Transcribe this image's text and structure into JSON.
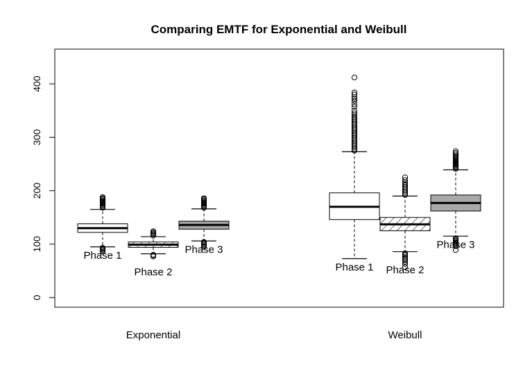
{
  "chart_data": {
    "type": "box",
    "title": "Comparing EMTF for Exponential and Weibull",
    "xlabel": "",
    "ylabel": "",
    "ylim": [
      -18,
      465
    ],
    "yticks": [
      0,
      100,
      200,
      300,
      400
    ],
    "groups": [
      "Exponential",
      "Weibull"
    ],
    "grid": false,
    "colors": {
      "white": "#ffffff",
      "hatched": "#ffffff",
      "gray": "#a9a9a9",
      "line": "#000000"
    },
    "boxes": [
      {
        "group": "Exponential",
        "label": "Phase 1",
        "fill": "white",
        "whisker_low": 95,
        "q1": 122,
        "median": 130,
        "q3": 138,
        "whisker_high": 165,
        "outliers_high": [
          168,
          170,
          172,
          174,
          176,
          178,
          180,
          182,
          184,
          186,
          188
        ],
        "outliers_low": [
          86,
          88,
          90,
          92,
          93
        ]
      },
      {
        "group": "Exponential",
        "label": "Phase 2",
        "fill": "hatched",
        "whisker_low": 82,
        "q1": 94,
        "median": 99,
        "q3": 104,
        "whisker_high": 114,
        "outliers_high": [
          116,
          118,
          120,
          122,
          124
        ],
        "outliers_low": [
          77,
          79,
          80
        ]
      },
      {
        "group": "Exponential",
        "label": "Phase 3",
        "fill": "gray",
        "whisker_low": 106,
        "q1": 128,
        "median": 136,
        "q3": 143,
        "whisker_high": 166,
        "outliers_high": [
          168,
          170,
          172,
          174,
          176,
          178,
          180,
          182,
          184,
          186
        ],
        "outliers_low": [
          95,
          97,
          99,
          101,
          103,
          104
        ]
      },
      {
        "group": "Weibull",
        "label": "Phase 1",
        "fill": "white",
        "whisker_low": 73,
        "q1": 146,
        "median": 170,
        "q3": 196,
        "whisker_high": 273,
        "outliers_high": [
          275,
          278,
          281,
          284,
          287,
          290,
          293,
          296,
          299,
          302,
          305,
          308,
          311,
          314,
          317,
          320,
          323,
          326,
          329,
          332,
          335,
          338,
          341,
          345,
          350,
          357,
          362,
          368,
          372,
          375,
          380,
          384,
          412
        ],
        "outliers_low": []
      },
      {
        "group": "Weibull",
        "label": "Phase 2",
        "fill": "hatched",
        "whisker_low": 86,
        "q1": 125,
        "median": 137,
        "q3": 150,
        "whisker_high": 190,
        "outliers_high": [
          192,
          195,
          198,
          201,
          204,
          207,
          210,
          213,
          216,
          220,
          225
        ],
        "outliers_low": [
          57,
          63,
          67,
          70,
          73,
          76,
          79,
          81,
          83
        ]
      },
      {
        "group": "Weibull",
        "label": "Phase 3",
        "fill": "gray",
        "whisker_low": 115,
        "q1": 162,
        "median": 177,
        "q3": 192,
        "whisker_high": 239,
        "outliers_high": [
          241,
          243,
          245,
          247,
          249,
          251,
          253,
          255,
          257,
          259,
          261,
          263,
          265,
          268,
          271,
          274
        ],
        "outliers_low": [
          89,
          96,
          99,
          101,
          103,
          105,
          107,
          109,
          111
        ]
      }
    ]
  }
}
